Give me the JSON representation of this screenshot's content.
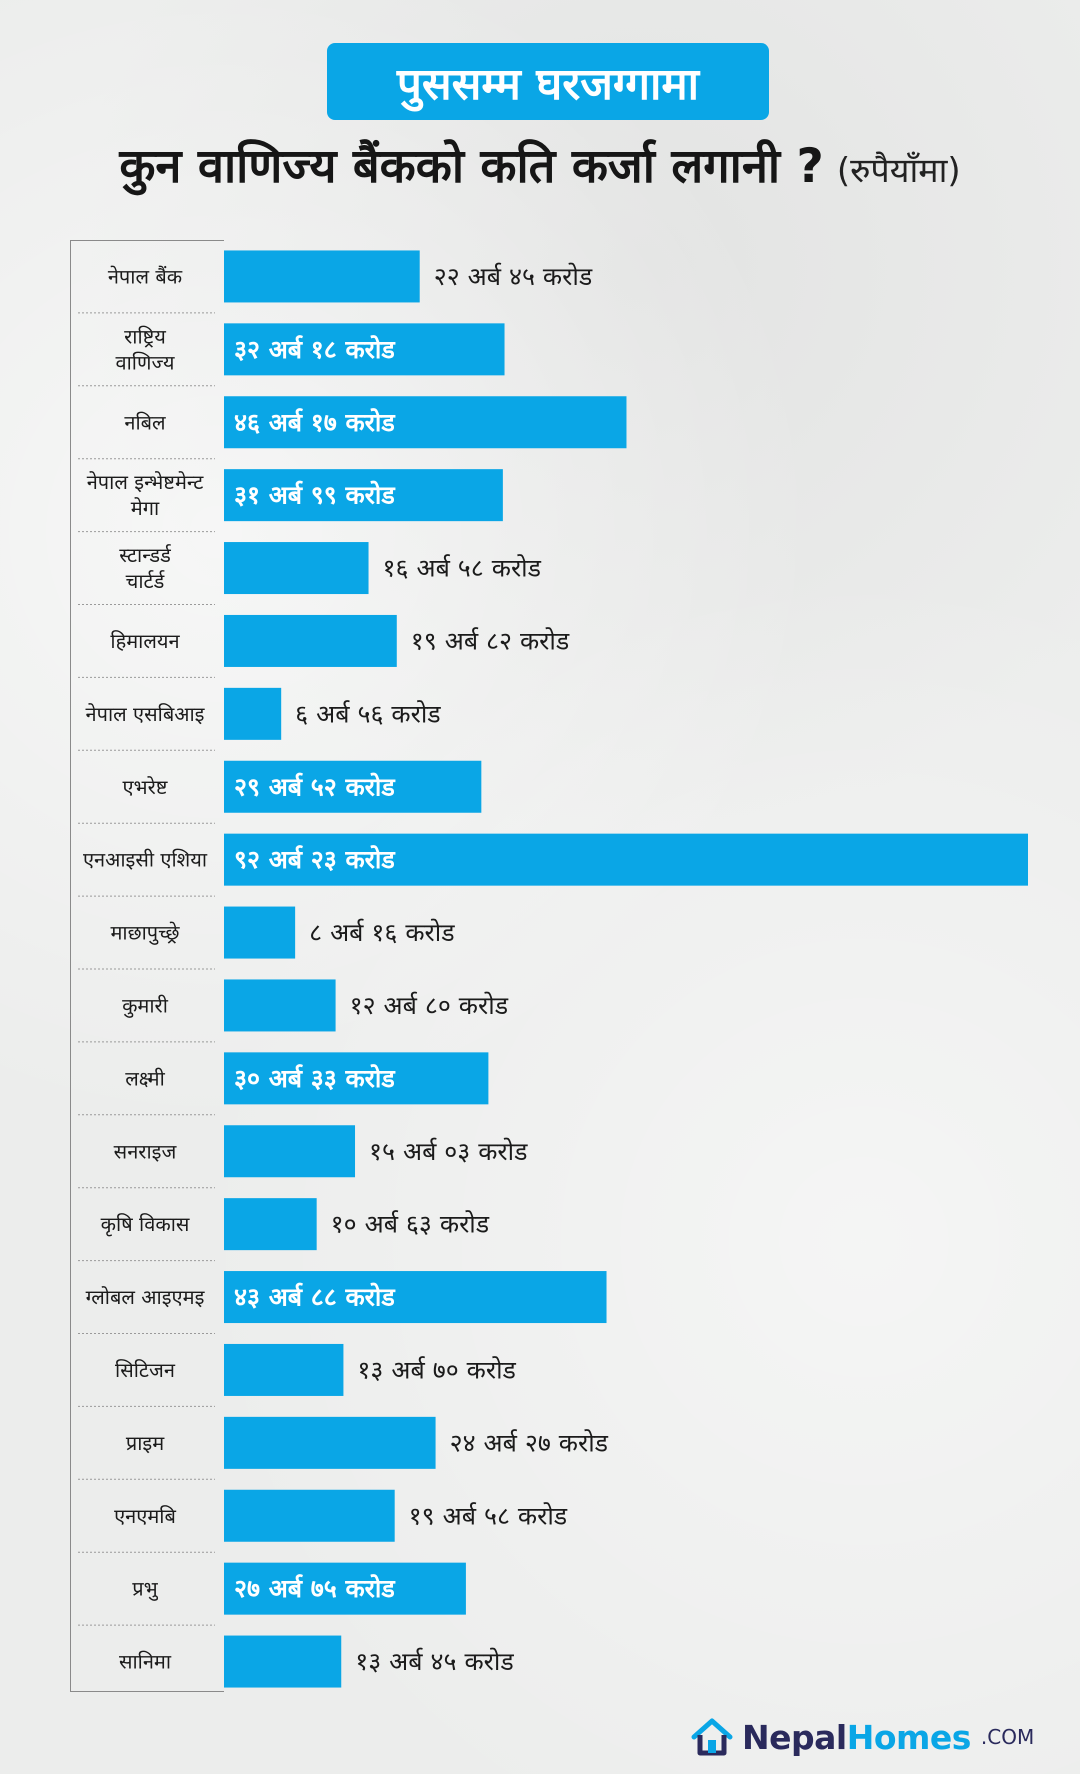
{
  "header": {
    "title": "पुससम्म घरजग्गामा",
    "subtitle": "कुन वाणिज्य बैंकको कति कर्जा लगानी ?",
    "unit": "(रुपैयाँमा)"
  },
  "colors": {
    "accent": "#0aa6e6",
    "text": "#1b1b1b",
    "navy": "#2a2a5c"
  },
  "chart_data": {
    "type": "bar",
    "orientation": "horizontal",
    "unit": "करोड",
    "categories": [
      "नेपाल बैंक",
      "राष्ट्रिय वाणिज्य",
      "नबिल",
      "नेपाल इन्भेष्टमेन्ट मेगा",
      "स्टान्डर्ड चार्टर्ड",
      "हिमालयन",
      "नेपाल एसबिआइ",
      "एभरेष्ट",
      "एनआइसी एशिया",
      "माछापुच्छ्रे",
      "कुमारी",
      "लक्ष्मी",
      "सनराइज",
      "कृषि विकास",
      "ग्लोबल आइएमइ",
      "सिटिजन",
      "प्राइम",
      "एनएमबि",
      "प्रभु",
      "सानिमा"
    ],
    "values": [
      2245,
      3218,
      4617,
      3199,
      1658,
      1982,
      656,
      2952,
      9223,
      816,
      1280,
      3033,
      1503,
      1063,
      4388,
      1370,
      2427,
      1958,
      2775,
      1345
    ],
    "labels": [
      "२२ अर्ब ४५ करोड",
      "३२ अर्ब १८ करोड",
      "४६ अर्ब १७ करोड",
      "३१ अर्ब ९९ करोड",
      "१६ अर्ब ५८ करोड",
      "१९ अर्ब ८२ करोड",
      "६ अर्ब ५६ करोड",
      "२९ अर्ब ५२ करोड",
      "९२ अर्ब २३ करोड",
      "८ अर्ब १६ करोड",
      "१२ अर्ब ८० करोड",
      "३० अर्ब ३३ करोड",
      "१५ अर्ब ०३ करोड",
      "१० अर्ब ६३ करोड",
      "४३ अर्ब ८८ करोड",
      "१३ अर्ब ७० करोड",
      "२४ अर्ब २७ करोड",
      "१९ अर्ब ५८ करोड",
      "२७ अर्ब ७५ करोड",
      "१३ अर्ब ४५ करोड"
    ]
  },
  "footer": {
    "brand_a": "Nepal",
    "brand_b": "Homes",
    "brand_suffix": ".COM"
  }
}
